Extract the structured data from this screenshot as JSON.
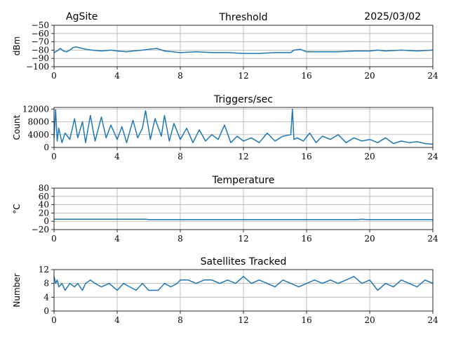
{
  "header": {
    "site": "AgSite",
    "date": "2025/03/02"
  },
  "chart_data": [
    {
      "type": "line",
      "title": "Threshold",
      "ylabel": "dBm",
      "xlim": [
        0,
        24
      ],
      "ylim": [
        -100,
        -50
      ],
      "xticks": [
        0,
        4,
        8,
        12,
        16,
        20,
        24
      ],
      "yticks": [
        -100,
        -90,
        -80,
        -70,
        -60,
        -50
      ],
      "ytick_labels": [
        "−100",
        "−90",
        "−80",
        "−70",
        "−60",
        "−50"
      ],
      "grid": true,
      "color": "#1f77b4",
      "series": [
        {
          "x": [
            0,
            0.2,
            0.4,
            0.6,
            0.8,
            1.0,
            1.2,
            1.4,
            1.6,
            2.0,
            2.4,
            3.0,
            3.6,
            4.0,
            4.6,
            5.0,
            5.6,
            6.0,
            6.5,
            7.0,
            7.5,
            8.0,
            9.0,
            10.0,
            11.0,
            12.0,
            13.0,
            14.0,
            15.0,
            15.2,
            15.6,
            16.0,
            17.0,
            18.0,
            19.0,
            20.0,
            20.5,
            21.0,
            22.0,
            23.0,
            24.0
          ],
          "y": [
            -83,
            -81,
            -78,
            -81,
            -82,
            -80,
            -77,
            -76,
            -77,
            -79,
            -80,
            -81,
            -80,
            -81,
            -82,
            -81,
            -80,
            -79,
            -78,
            -81,
            -82,
            -83,
            -82,
            -83,
            -83,
            -84,
            -84,
            -83,
            -83,
            -80,
            -79,
            -82,
            -82,
            -82,
            -81,
            -81,
            -80,
            -81,
            -80,
            -81,
            -80
          ]
        }
      ]
    },
    {
      "type": "line",
      "title": "Triggers/sec",
      "ylabel": "Count",
      "xlim": [
        0,
        24
      ],
      "ylim": [
        0,
        12500
      ],
      "xticks": [
        0,
        4,
        8,
        12,
        16,
        20,
        24
      ],
      "yticks": [
        0,
        4000,
        8000,
        12000
      ],
      "ytick_labels": [
        "0",
        "4000",
        "8000",
        "12000"
      ],
      "grid": true,
      "color": "#1f77b4",
      "series": [
        {
          "x": [
            0,
            0.1,
            0.2,
            0.3,
            0.5,
            0.7,
            1.0,
            1.3,
            1.5,
            1.8,
            2.0,
            2.3,
            2.6,
            3.0,
            3.3,
            3.6,
            4.0,
            4.3,
            4.6,
            5.0,
            5.3,
            5.6,
            5.8,
            6.1,
            6.4,
            6.8,
            7.0,
            7.3,
            7.6,
            8.0,
            8.4,
            8.8,
            9.2,
            9.6,
            10.0,
            10.4,
            10.8,
            11.2,
            11.6,
            12.0,
            12.5,
            13.0,
            13.5,
            14.0,
            14.5,
            15.0,
            15.1,
            15.2,
            15.4,
            15.8,
            16.2,
            16.6,
            17.0,
            17.5,
            18.0,
            18.5,
            19.0,
            19.5,
            20.0,
            20.5,
            21.0,
            21.5,
            22.0,
            22.5,
            23.0,
            23.5,
            24.0
          ],
          "y": [
            3000,
            11800,
            2000,
            6000,
            1500,
            4500,
            2500,
            9000,
            3000,
            8000,
            1500,
            10000,
            2000,
            9500,
            3000,
            7000,
            2500,
            6500,
            1500,
            8500,
            3000,
            6000,
            11500,
            2500,
            9000,
            3500,
            10000,
            2000,
            7500,
            2500,
            6000,
            1500,
            5500,
            2000,
            4000,
            2500,
            7000,
            1500,
            3500,
            2000,
            3000,
            1500,
            4500,
            2000,
            3500,
            4000,
            12000,
            2500,
            3000,
            2000,
            4500,
            1500,
            3500,
            2500,
            4000,
            1500,
            3000,
            2000,
            2500,
            1500,
            3000,
            1200,
            2000,
            1500,
            1800,
            1200,
            1000
          ]
        }
      ]
    },
    {
      "type": "line",
      "title": "Temperature",
      "ylabel": "°C",
      "xlim": [
        0,
        24
      ],
      "ylim": [
        -20,
        80
      ],
      "xticks": [
        0,
        4,
        8,
        12,
        16,
        20,
        24
      ],
      "yticks": [
        -20,
        0,
        20,
        40,
        60,
        80
      ],
      "ytick_labels": [
        "−20",
        "0",
        "20",
        "40",
        "60",
        "80"
      ],
      "grid": true,
      "color": "#1f77b4",
      "series": [
        {
          "x": [
            0,
            1,
            2,
            3,
            4,
            5,
            5.8,
            6.0,
            7,
            8,
            10,
            12,
            14,
            16,
            18,
            19.2,
            19.5,
            19.8,
            21,
            22,
            23,
            24
          ],
          "y": [
            5,
            5,
            5,
            5,
            5,
            5,
            5,
            4,
            4,
            4,
            4,
            4,
            4,
            4,
            4,
            4,
            5,
            4,
            4,
            4,
            4,
            4
          ]
        }
      ]
    },
    {
      "type": "line",
      "title": "Satellites Tracked",
      "ylabel": "Number",
      "xlim": [
        0,
        24
      ],
      "ylim": [
        0,
        12
      ],
      "xticks": [
        0,
        4,
        8,
        12,
        16,
        20,
        24
      ],
      "yticks": [
        0,
        4,
        8,
        12
      ],
      "ytick_labels": [
        "0",
        "4",
        "8",
        "12"
      ],
      "grid": true,
      "color": "#1f77b4",
      "series": [
        {
          "x": [
            0,
            0.1,
            0.2,
            0.3,
            0.5,
            0.7,
            1.0,
            1.3,
            1.5,
            1.8,
            2.0,
            2.3,
            2.6,
            3.0,
            3.5,
            4.0,
            4.4,
            4.8,
            5.2,
            5.6,
            6.0,
            6.6,
            7.0,
            7.4,
            7.8,
            8.0,
            8.5,
            9.0,
            9.5,
            10.0,
            10.5,
            11.0,
            11.5,
            12.0,
            12.5,
            13.0,
            13.5,
            14.0,
            14.5,
            15.0,
            15.5,
            16.0,
            16.5,
            17.0,
            17.5,
            18.0,
            18.5,
            19.0,
            19.5,
            20.0,
            20.5,
            21.0,
            21.5,
            22.0,
            22.5,
            23.0,
            23.5,
            24.0
          ],
          "y": [
            10,
            8,
            9,
            7,
            8,
            6,
            8,
            7,
            8,
            6,
            8,
            9,
            8,
            7,
            8,
            6,
            8,
            7,
            6,
            8,
            6,
            6,
            8,
            7,
            8,
            9,
            9,
            8,
            9,
            9,
            8,
            9,
            8,
            10,
            8,
            9,
            8,
            7,
            9,
            8,
            7,
            8,
            9,
            8,
            9,
            8,
            9,
            10,
            8,
            9,
            6,
            8,
            7,
            9,
            8,
            7,
            9,
            8
          ]
        }
      ]
    }
  ]
}
